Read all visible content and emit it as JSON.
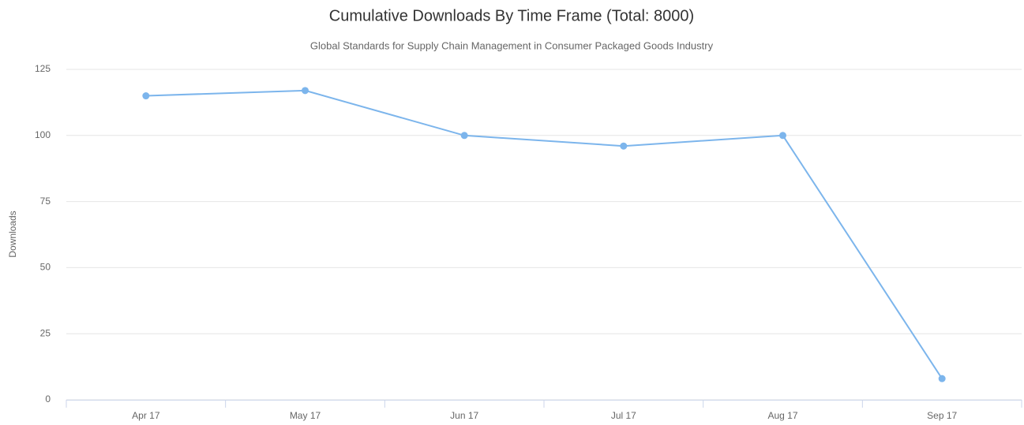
{
  "chart_data": {
    "type": "line",
    "title": "Cumulative Downloads By Time Frame (Total: 8000)",
    "subtitle": "Global Standards for Supply Chain Management in Consumer Packaged Goods Industry",
    "ylabel": "Downloads",
    "categories": [
      "Apr 17",
      "May 17",
      "Jun 17",
      "Jul 17",
      "Aug 17",
      "Sep 17"
    ],
    "values": [
      115,
      117,
      100,
      96,
      100,
      8
    ],
    "color": "#7cb5ec",
    "ylim": [
      0,
      125
    ],
    "yticks": [
      0,
      25,
      50,
      75,
      100,
      125
    ],
    "grid": true
  }
}
